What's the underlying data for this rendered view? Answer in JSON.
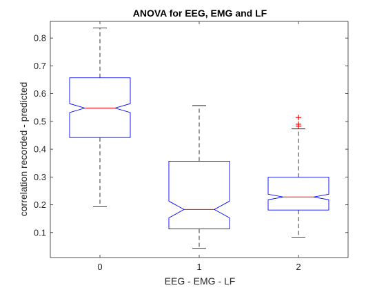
{
  "chart_data": {
    "type": "boxplot",
    "title": "ANOVA for EEG, EMG and LF",
    "xlabel": "EEG - EMG - LF",
    "ylabel": "correlation recorded - predicted",
    "categories": [
      "0",
      "1",
      "2"
    ],
    "ylim": [
      0.01,
      0.86
    ],
    "yticks": [
      0.1,
      0.2,
      0.3,
      0.4,
      0.5,
      0.6,
      0.7,
      0.8
    ],
    "ytick_labels": [
      "0.1",
      "0.2",
      "0.3",
      "0.4",
      "0.5",
      "0.6",
      "0.7",
      "0.8"
    ],
    "notched": true,
    "grid": false,
    "boxes": [
      {
        "category": "0",
        "whisker_low": 0.193,
        "q1": 0.442,
        "median": 0.548,
        "q3": 0.657,
        "whisker_high": 0.836,
        "notch_low": 0.532,
        "notch_high": 0.564,
        "outliers": []
      },
      {
        "category": "1",
        "whisker_low": 0.043,
        "q1": 0.113,
        "median": 0.183,
        "q3": 0.357,
        "whisker_high": 0.557,
        "notch_low": 0.153,
        "notch_high": 0.213,
        "outliers": []
      },
      {
        "category": "2",
        "whisker_low": 0.083,
        "q1": 0.181,
        "median": 0.228,
        "q3": 0.299,
        "whisker_high": 0.473,
        "notch_low": 0.218,
        "notch_high": 0.238,
        "outliers": [
          0.483,
          0.49,
          0.514
        ]
      }
    ],
    "colors": {
      "box": "#0000ff",
      "median": "#ff0000",
      "whisker": "#000000",
      "outlier": "#ff0000",
      "axis": "#262626"
    }
  }
}
